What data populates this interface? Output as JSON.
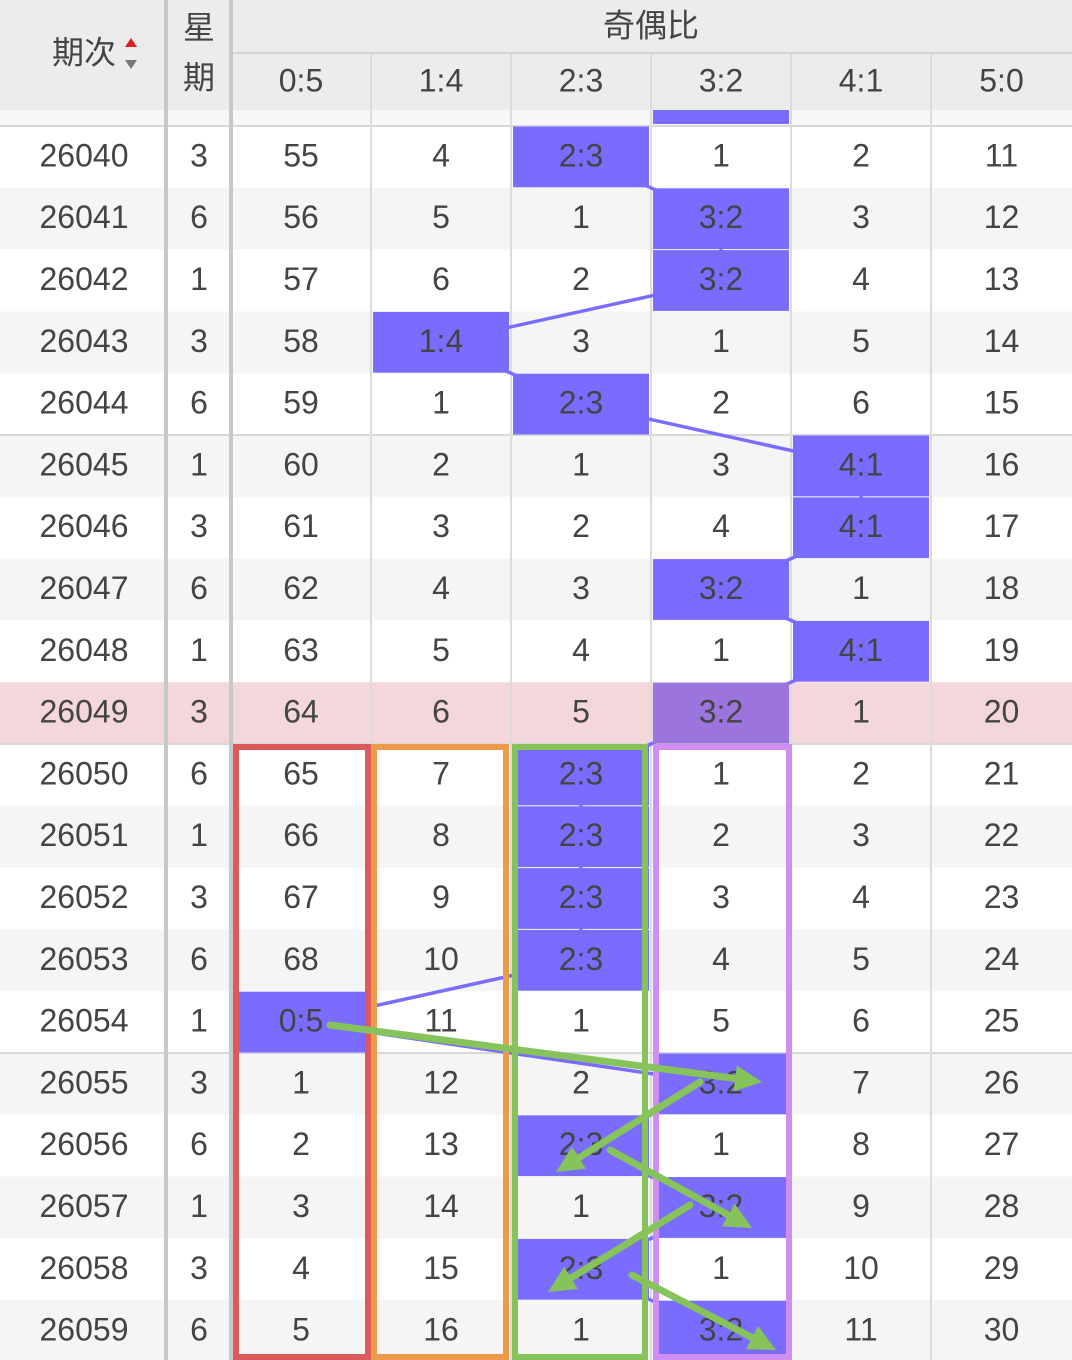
{
  "header": {
    "period": "期次",
    "weekday": [
      "星",
      "期"
    ],
    "group": "奇偶比",
    "ratios": [
      "0:5",
      "1:4",
      "2:3",
      "3:2",
      "4:1",
      "5:0"
    ]
  },
  "rows": [
    {
      "period": 26040,
      "weekday": 3,
      "cells": [
        55,
        4,
        "2:3",
        1,
        2,
        11
      ]
    },
    {
      "period": 26041,
      "weekday": 6,
      "cells": [
        56,
        5,
        1,
        "3:2",
        3,
        12
      ]
    },
    {
      "period": 26042,
      "weekday": 1,
      "cells": [
        57,
        6,
        2,
        "3:2",
        4,
        13
      ]
    },
    {
      "period": 26043,
      "weekday": 3,
      "cells": [
        58,
        "1:4",
        3,
        1,
        5,
        14
      ]
    },
    {
      "period": 26044,
      "weekday": 6,
      "cells": [
        59,
        1,
        "2:3",
        2,
        6,
        15
      ]
    },
    {
      "period": 26045,
      "weekday": 1,
      "cells": [
        60,
        2,
        1,
        3,
        "4:1",
        16
      ]
    },
    {
      "period": 26046,
      "weekday": 3,
      "cells": [
        61,
        3,
        2,
        4,
        "4:1",
        17
      ]
    },
    {
      "period": 26047,
      "weekday": 6,
      "cells": [
        62,
        4,
        3,
        "3:2",
        1,
        18
      ]
    },
    {
      "period": 26048,
      "weekday": 1,
      "cells": [
        63,
        5,
        4,
        1,
        "4:1",
        19
      ]
    },
    {
      "period": 26049,
      "weekday": 3,
      "cells": [
        64,
        6,
        5,
        "3:2",
        1,
        20
      ]
    },
    {
      "period": 26050,
      "weekday": 6,
      "cells": [
        65,
        7,
        "2:3",
        1,
        2,
        21
      ]
    },
    {
      "period": 26051,
      "weekday": 1,
      "cells": [
        66,
        8,
        "2:3",
        2,
        3,
        22
      ]
    },
    {
      "period": 26052,
      "weekday": 3,
      "cells": [
        67,
        9,
        "2:3",
        3,
        4,
        23
      ]
    },
    {
      "period": 26053,
      "weekday": 6,
      "cells": [
        68,
        10,
        "2:3",
        4,
        5,
        24
      ]
    },
    {
      "period": 26054,
      "weekday": 1,
      "cells": [
        "0:5",
        11,
        1,
        5,
        6,
        25
      ]
    },
    {
      "period": 26055,
      "weekday": 3,
      "cells": [
        1,
        12,
        2,
        "3:2",
        7,
        26
      ]
    },
    {
      "period": 26056,
      "weekday": 6,
      "cells": [
        2,
        13,
        "2:3",
        1,
        8,
        27
      ]
    },
    {
      "period": 26057,
      "weekday": 1,
      "cells": [
        3,
        14,
        1,
        "3:2",
        9,
        28
      ]
    },
    {
      "period": 26058,
      "weekday": 3,
      "cells": [
        4,
        15,
        "2:3",
        1,
        10,
        29
      ]
    },
    {
      "period": 26059,
      "weekday": 6,
      "cells": [
        5,
        16,
        1,
        "3:2",
        11,
        30
      ]
    }
  ]
}
